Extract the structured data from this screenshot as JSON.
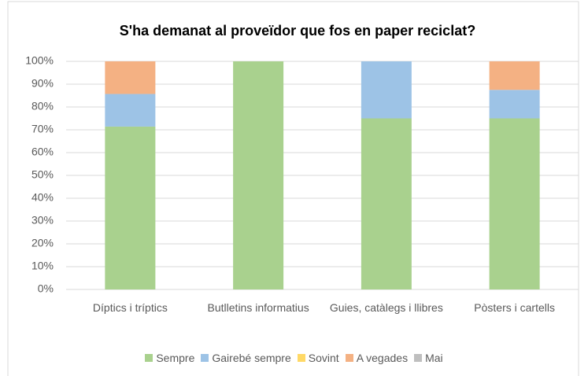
{
  "chart_data": {
    "type": "stacked_bar",
    "title": "S'ha demanat al proveïdor que fos en paper reciclat?",
    "categories": [
      "Díptics i tríptics",
      "Butlletins informatius",
      "Guies, catàlegs i llibres",
      "Pòsters i cartells"
    ],
    "series": [
      {
        "name": "Sempre",
        "color": "#a9d18e",
        "values": [
          71.4,
          100,
          75,
          75
        ]
      },
      {
        "name": "Gairebé sempre",
        "color": "#9dc3e6",
        "values": [
          14.3,
          0,
          25,
          12.5
        ]
      },
      {
        "name": "Sovint",
        "color": "#ffd966",
        "values": [
          0,
          0,
          0,
          0
        ]
      },
      {
        "name": "A vegades",
        "color": "#f4b183",
        "values": [
          14.3,
          0,
          0,
          12.5
        ]
      },
      {
        "name": "Mai",
        "color": "#bfbfbf",
        "values": [
          0,
          0,
          0,
          0
        ]
      }
    ],
    "ylim": [
      0,
      100
    ],
    "yticks": [
      {
        "value": 0,
        "label": "0%"
      },
      {
        "value": 10,
        "label": "10%"
      },
      {
        "value": 20,
        "label": "20%"
      },
      {
        "value": 30,
        "label": "30%"
      },
      {
        "value": 40,
        "label": "40%"
      },
      {
        "value": 50,
        "label": "50%"
      },
      {
        "value": 60,
        "label": "60%"
      },
      {
        "value": 70,
        "label": "70%"
      },
      {
        "value": 80,
        "label": "80%"
      },
      {
        "value": 90,
        "label": "90%"
      },
      {
        "value": 100,
        "label": "100%"
      }
    ],
    "grid": true,
    "legend": "bottom"
  }
}
